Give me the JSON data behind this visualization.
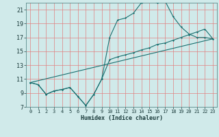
{
  "background_color": "#d0eaea",
  "grid_color": "#e08080",
  "line_color": "#1a7070",
  "xlim": [
    -0.5,
    23.5
  ],
  "ylim": [
    7,
    22
  ],
  "xlabel": "Humidex (Indice chaleur)",
  "xticks": [
    0,
    1,
    2,
    3,
    4,
    5,
    6,
    7,
    8,
    9,
    10,
    11,
    12,
    13,
    14,
    15,
    16,
    17,
    18,
    19,
    20,
    21,
    22,
    23
  ],
  "yticks": [
    7,
    9,
    11,
    13,
    15,
    17,
    19,
    21
  ],
  "line1_x": [
    0,
    1,
    2,
    3,
    4,
    5,
    6,
    7,
    8,
    9,
    10,
    11,
    12,
    13,
    14,
    15,
    16,
    17,
    18,
    19,
    20,
    21,
    22,
    23
  ],
  "line1_y": [
    10.5,
    10.2,
    8.8,
    9.3,
    9.5,
    9.8,
    8.5,
    7.2,
    8.8,
    11.0,
    17.0,
    19.5,
    19.8,
    20.5,
    22.0,
    22.2,
    22.0,
    22.2,
    20.0,
    18.5,
    17.5,
    17.0,
    17.0,
    16.8
  ],
  "line2_x": [
    0,
    1,
    2,
    3,
    4,
    5,
    6,
    7,
    8,
    9,
    10,
    11,
    12,
    13,
    14,
    15,
    16,
    17,
    18,
    19,
    20,
    21,
    22,
    23
  ],
  "line2_y": [
    10.5,
    10.2,
    8.8,
    9.3,
    9.5,
    9.8,
    8.5,
    7.2,
    8.8,
    11.0,
    13.8,
    14.2,
    14.5,
    14.8,
    15.2,
    15.5,
    16.0,
    16.2,
    16.6,
    17.0,
    17.4,
    17.8,
    18.2,
    16.8
  ],
  "line3_x": [
    0,
    23
  ],
  "line3_y": [
    10.5,
    16.8
  ],
  "figsize": [
    3.2,
    2.0
  ],
  "dpi": 100,
  "tick_fontsize": 5,
  "xlabel_fontsize": 6
}
